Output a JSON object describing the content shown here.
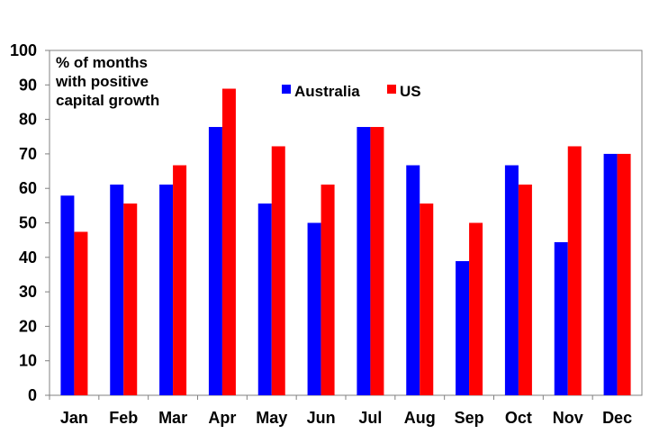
{
  "chart_data": {
    "type": "bar",
    "title": "% of months with positive capital growth",
    "title_lines": [
      "% of months",
      "with positive",
      "capital growth"
    ],
    "categories": [
      "Jan",
      "Feb",
      "Mar",
      "Apr",
      "May",
      "Jun",
      "Jul",
      "Aug",
      "Sep",
      "Oct",
      "Nov",
      "Dec"
    ],
    "series": [
      {
        "name": "Australia",
        "color": "#0000ff",
        "values": [
          57.9,
          61.1,
          61.1,
          77.8,
          55.6,
          50.0,
          77.8,
          66.7,
          38.9,
          66.7,
          44.4,
          70.0
        ]
      },
      {
        "name": "US",
        "color": "#ff0000",
        "values": [
          47.4,
          55.6,
          66.7,
          88.9,
          72.2,
          61.1,
          77.8,
          55.6,
          50.0,
          61.1,
          72.2,
          70.0
        ]
      }
    ],
    "xlabel": "",
    "ylabel": "",
    "ylim": [
      0,
      100
    ],
    "yticks": [
      0,
      10,
      20,
      30,
      40,
      50,
      60,
      70,
      80,
      90,
      100
    ],
    "grid": false,
    "legend_placement": "top-center"
  }
}
